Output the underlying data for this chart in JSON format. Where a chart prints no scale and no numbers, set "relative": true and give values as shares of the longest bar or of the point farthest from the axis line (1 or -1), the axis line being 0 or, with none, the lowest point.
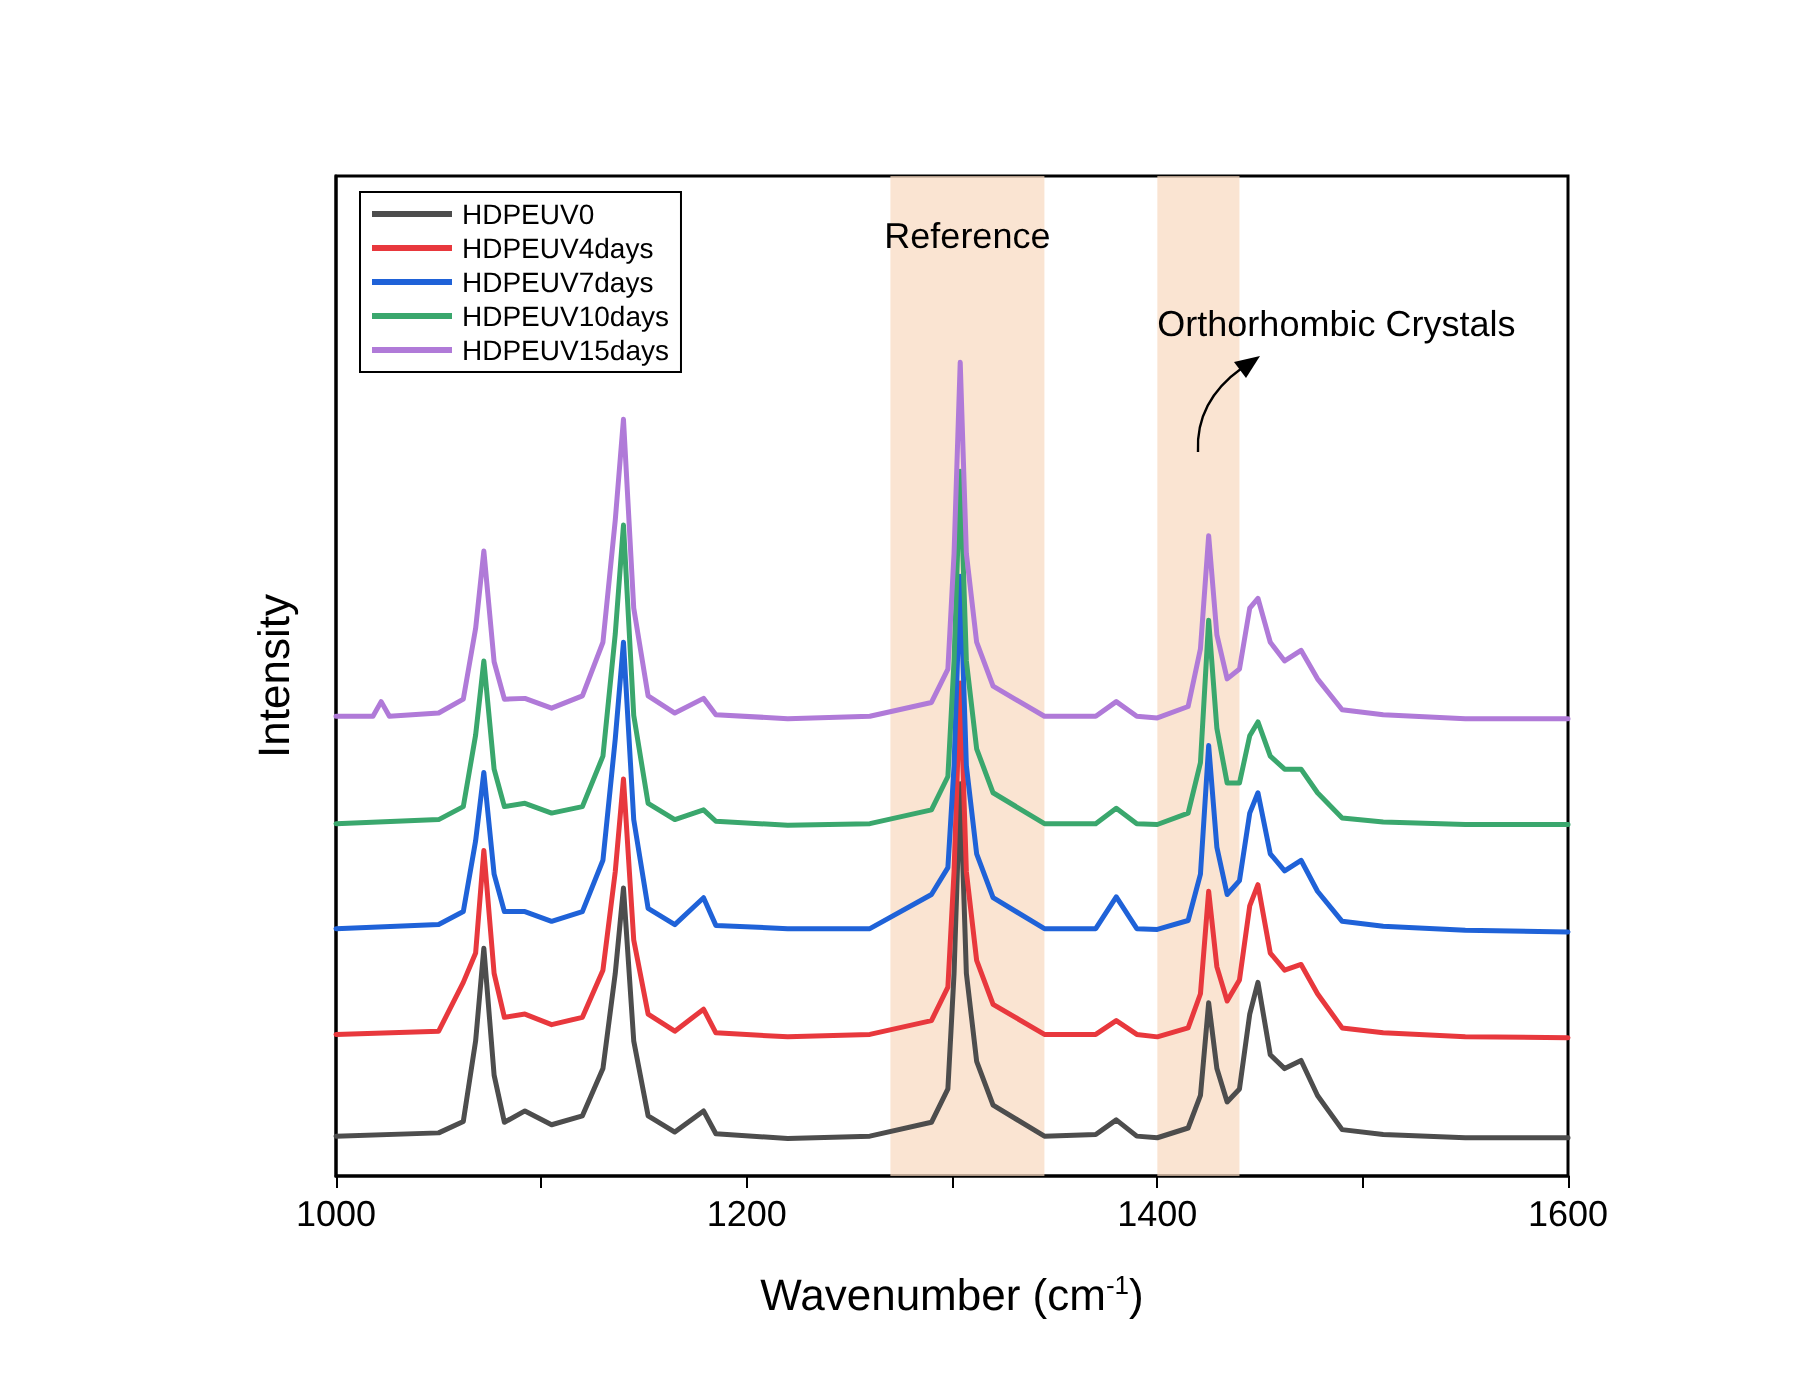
{
  "chart_data": {
    "type": "line",
    "relative": true,
    "xlabel": "Wavenumber (cm$^{-1}$)",
    "ylabel": "Intensity",
    "xlim": [
      1000,
      1600
    ],
    "xticks": [
      1000,
      {
        "value": 1100,
        "label": null
      },
      1200,
      {
        "value": 1300,
        "label": null
      },
      1400,
      {
        "value": 1500,
        "label": null
      },
      1600
    ],
    "x": [
      1000,
      1050,
      1062,
      1068,
      1072,
      1077,
      1082,
      1092,
      1105,
      1120,
      1130,
      1136,
      1140,
      1145,
      1152,
      1165,
      1179,
      1185,
      1220,
      1260,
      1290,
      1298,
      1301,
      1304,
      1307,
      1312,
      1320,
      1345,
      1370,
      1380,
      1390,
      1400,
      1415,
      1421,
      1425,
      1429,
      1434,
      1440,
      1445,
      1449,
      1455,
      1462,
      1470,
      1478,
      1490,
      1510,
      1550,
      1600
    ],
    "series": [
      {
        "name": "HDPEUV0",
        "color": "#4d4d4d",
        "values": [
          0.049,
          0.053,
          0.067,
          0.166,
          0.28,
          0.124,
          0.066,
          0.08,
          0.063,
          0.074,
          0.132,
          0.249,
          0.354,
          0.166,
          0.074,
          0.054,
          0.08,
          0.052,
          0.046,
          0.049,
          0.066,
          0.107,
          0.249,
          0.482,
          0.249,
          0.141,
          0.087,
          0.049,
          0.051,
          0.069,
          0.049,
          0.047,
          0.059,
          0.099,
          0.213,
          0.132,
          0.091,
          0.107,
          0.199,
          0.238,
          0.149,
          0.132,
          0.142,
          0.099,
          0.057,
          0.051,
          0.047,
          0.047
        ]
      },
      {
        "name": "HDPEUV4days",
        "color": "#e8383d",
        "values": [
          0.174,
          0.178,
          0.238,
          0.274,
          0.4,
          0.249,
          0.195,
          0.199,
          0.186,
          0.195,
          0.253,
          0.374,
          0.488,
          0.29,
          0.199,
          0.178,
          0.205,
          0.176,
          0.171,
          0.174,
          0.191,
          0.232,
          0.374,
          0.606,
          0.374,
          0.265,
          0.211,
          0.174,
          0.174,
          0.191,
          0.174,
          0.171,
          0.182,
          0.224,
          0.35,
          0.257,
          0.215,
          0.241,
          0.332,
          0.358,
          0.274,
          0.253,
          0.26,
          0.224,
          0.182,
          0.176,
          0.171,
          0.17
        ]
      },
      {
        "name": "HDPEUV7days",
        "color": "#1f62d8",
        "values": [
          0.304,
          0.309,
          0.325,
          0.412,
          0.496,
          0.371,
          0.325,
          0.325,
          0.313,
          0.325,
          0.388,
          0.537,
          0.656,
          0.438,
          0.329,
          0.309,
          0.342,
          0.308,
          0.304,
          0.304,
          0.346,
          0.379,
          0.504,
          0.737,
          0.504,
          0.396,
          0.342,
          0.304,
          0.304,
          0.343,
          0.304,
          0.303,
          0.314,
          0.371,
          0.529,
          0.404,
          0.346,
          0.363,
          0.446,
          0.471,
          0.396,
          0.375,
          0.388,
          0.35,
          0.313,
          0.307,
          0.302,
          0.3
        ]
      },
      {
        "name": "HDPEUV10days",
        "color": "#3aa76d",
        "values": [
          0.433,
          0.438,
          0.454,
          0.542,
          0.633,
          0.5,
          0.454,
          0.458,
          0.446,
          0.454,
          0.516,
          0.666,
          0.8,
          0.566,
          0.458,
          0.438,
          0.45,
          0.436,
          0.431,
          0.433,
          0.45,
          0.491,
          0.633,
          0.866,
          0.633,
          0.525,
          0.471,
          0.433,
          0.433,
          0.452,
          0.433,
          0.432,
          0.446,
          0.508,
          0.683,
          0.55,
          0.483,
          0.483,
          0.541,
          0.558,
          0.516,
          0.5,
          0.5,
          0.471,
          0.44,
          0.435,
          0.432,
          0.432
        ]
      },
      {
        "name": "HDPEUV15days",
        "color": "#b07ad8",
        "x": [
          1000,
          1018,
          1022,
          1026,
          1050,
          1062,
          1068,
          1072,
          1077,
          1082,
          1092,
          1105,
          1120,
          1130,
          1136,
          1140,
          1145,
          1152,
          1165,
          1179,
          1185,
          1220,
          1260,
          1290,
          1298,
          1301,
          1304,
          1307,
          1312,
          1320,
          1345,
          1370,
          1380,
          1390,
          1400,
          1415,
          1421,
          1425,
          1429,
          1434,
          1440,
          1445,
          1449,
          1455,
          1462,
          1470,
          1478,
          1490,
          1510,
          1550,
          1600
        ],
        "values": [
          0.565,
          0.565,
          0.583,
          0.565,
          0.569,
          0.586,
          0.673,
          0.768,
          0.632,
          0.586,
          0.587,
          0.575,
          0.59,
          0.656,
          0.806,
          0.93,
          0.698,
          0.59,
          0.569,
          0.587,
          0.567,
          0.562,
          0.565,
          0.582,
          0.623,
          0.765,
          1.0,
          0.765,
          0.656,
          0.602,
          0.565,
          0.565,
          0.583,
          0.565,
          0.563,
          0.577,
          0.648,
          0.787,
          0.665,
          0.611,
          0.623,
          0.698,
          0.71,
          0.656,
          0.633,
          0.646,
          0.611,
          0.573,
          0.567,
          0.562,
          0.562
        ]
      }
    ],
    "bands": [
      {
        "axis": "x",
        "from": 1270,
        "to": 1345,
        "label": "Reference",
        "color": "#f8d9bf"
      },
      {
        "axis": "x",
        "from": 1400,
        "to": 1440,
        "label": "Orthorhombic Crystals",
        "color": "#f8d9bf"
      }
    ],
    "legend": "top left",
    "grid": false,
    "marker": "none",
    "line_style": "solid"
  }
}
